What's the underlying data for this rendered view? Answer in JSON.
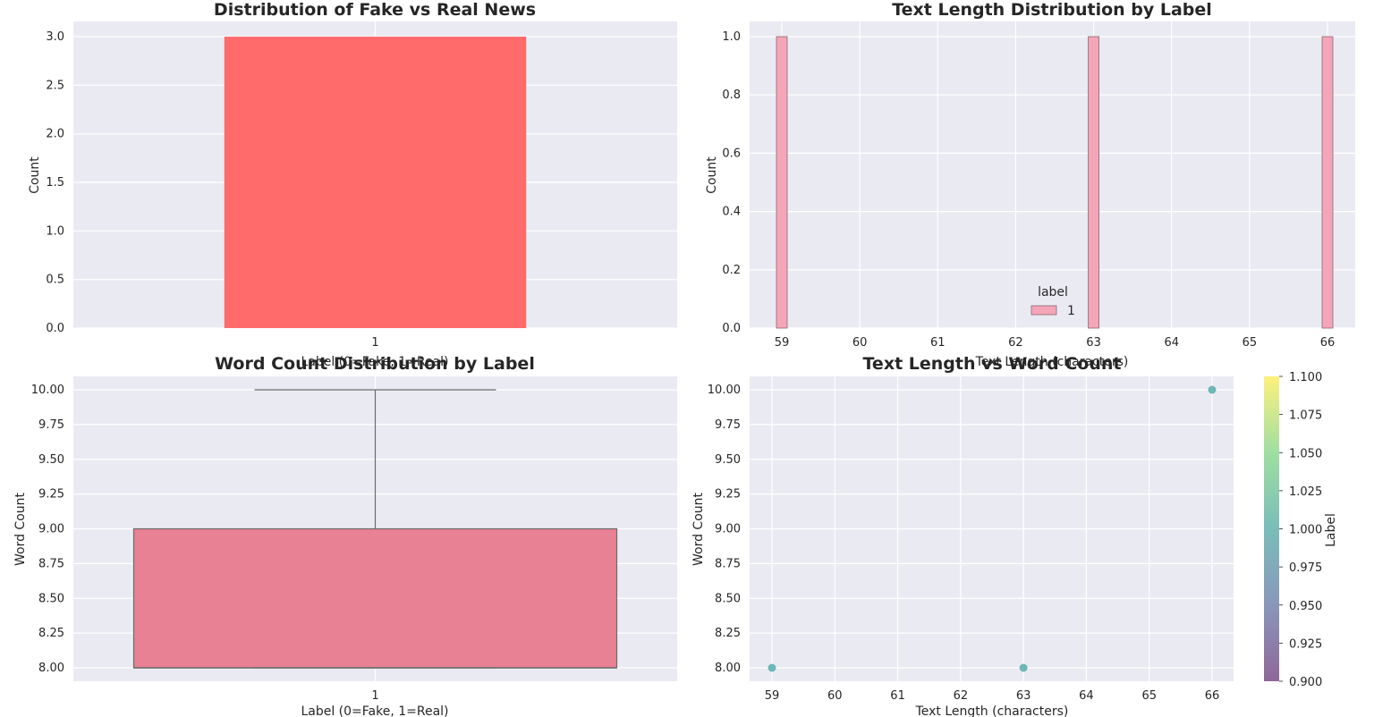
{
  "chart_data": [
    {
      "type": "bar",
      "title": "Distribution of Fake vs Real News",
      "xlabel": "Label (0=Fake, 1=Real)",
      "ylabel": "Count",
      "categories": [
        "1"
      ],
      "values": [
        3
      ],
      "ylim": [
        0,
        3.0
      ],
      "yticks": [
        "0.0",
        "0.5",
        "1.0",
        "1.5",
        "2.0",
        "2.5",
        "3.0"
      ],
      "color": "#ff6b6b",
      "grid": true
    },
    {
      "type": "bar",
      "title": "Text Length Distribution by Label",
      "xlabel": "Text Length (characters)",
      "ylabel": "Count",
      "x": [
        59,
        63,
        66
      ],
      "values": [
        1,
        1,
        1
      ],
      "xlim": [
        59,
        66
      ],
      "ylim": [
        0,
        1.0
      ],
      "xticks": [
        "59",
        "60",
        "61",
        "62",
        "63",
        "64",
        "65",
        "66"
      ],
      "yticks": [
        "0.0",
        "0.2",
        "0.4",
        "0.6",
        "0.8",
        "1.0"
      ],
      "legend": {
        "title": "label",
        "entries": [
          "1"
        ],
        "placement": "bottom-center"
      },
      "color": "#f4a6b8",
      "grid": true
    },
    {
      "type": "box",
      "title": "Word Count Distribution by Label",
      "xlabel": "Label (0=Fake, 1=Real)",
      "ylabel": "Word Count",
      "categories": [
        "1"
      ],
      "box": {
        "min": 8,
        "q1": 8,
        "median": 8,
        "q3": 9,
        "max": 10
      },
      "ylim": [
        8.0,
        10.0
      ],
      "yticks": [
        "8.00",
        "8.25",
        "8.50",
        "8.75",
        "9.00",
        "9.25",
        "9.50",
        "9.75",
        "10.00"
      ],
      "color": "#e88194",
      "grid": true
    },
    {
      "type": "scatter",
      "title": "Text Length vs Word Count",
      "xlabel": "Text Length (characters)",
      "ylabel": "Word Count",
      "points": [
        {
          "x": 59,
          "y": 8
        },
        {
          "x": 63,
          "y": 8
        },
        {
          "x": 66,
          "y": 10
        }
      ],
      "xlim": [
        59,
        66
      ],
      "ylim": [
        8.0,
        10.0
      ],
      "xticks": [
        "59",
        "60",
        "61",
        "62",
        "63",
        "64",
        "65",
        "66"
      ],
      "yticks": [
        "8.00",
        "8.25",
        "8.50",
        "8.75",
        "9.00",
        "9.25",
        "9.50",
        "9.75",
        "10.00"
      ],
      "point_color": "#5fb0b0",
      "colorbar": {
        "label": "Label",
        "range": [
          0.9,
          1.1
        ],
        "ticks": [
          "0.900",
          "0.925",
          "0.950",
          "0.975",
          "1.000",
          "1.025",
          "1.050",
          "1.075",
          "1.100"
        ],
        "colormap": "viridis"
      },
      "grid": true
    }
  ]
}
